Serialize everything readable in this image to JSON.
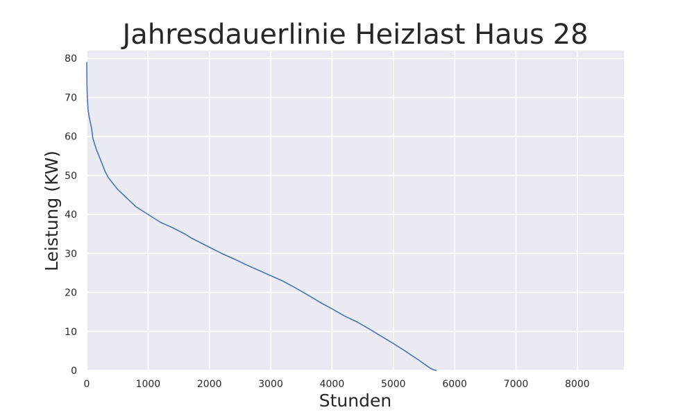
{
  "chart_data": {
    "type": "line",
    "title": "Jahresdauerlinie Heizlast Haus 28",
    "xlabel": "Stunden",
    "ylabel": "Leistung (KW)",
    "xlim": [
      0,
      8760
    ],
    "ylim": [
      0,
      82
    ],
    "xticks": [
      0,
      1000,
      2000,
      3000,
      4000,
      5000,
      6000,
      7000,
      8000
    ],
    "yticks": [
      0,
      10,
      20,
      30,
      40,
      50,
      60,
      70,
      80
    ],
    "grid": true,
    "legend": "none",
    "series": [
      {
        "color": "#4c72b0",
        "x": [
          0,
          2,
          5,
          10,
          20,
          40,
          60,
          80,
          100,
          130,
          160,
          200,
          250,
          300,
          350,
          400,
          450,
          500,
          600,
          700,
          800,
          900,
          1000,
          1100,
          1200,
          1300,
          1400,
          1500,
          1600,
          1700,
          1800,
          1900,
          2000,
          2200,
          2400,
          2600,
          2800,
          3000,
          3200,
          3400,
          3600,
          3800,
          4000,
          4200,
          4400,
          4600,
          4800,
          5000,
          5200,
          5400,
          5500,
          5600,
          5650,
          5700
        ],
        "y": [
          79,
          75,
          72,
          70,
          67,
          65,
          63.5,
          62,
          59.5,
          58,
          56.5,
          55,
          53,
          51,
          49.5,
          48.5,
          47.5,
          46.5,
          45,
          43.5,
          42,
          41,
          40,
          39,
          38,
          37.3,
          36.6,
          35.8,
          35,
          34,
          33.2,
          32.4,
          31.6,
          30,
          28.6,
          27.1,
          25.7,
          24.3,
          22.9,
          21.2,
          19.4,
          17.5,
          15.8,
          14,
          12.5,
          10.7,
          8.8,
          6.9,
          4.9,
          2.8,
          1.7,
          0.6,
          0.2,
          0
        ]
      }
    ]
  }
}
